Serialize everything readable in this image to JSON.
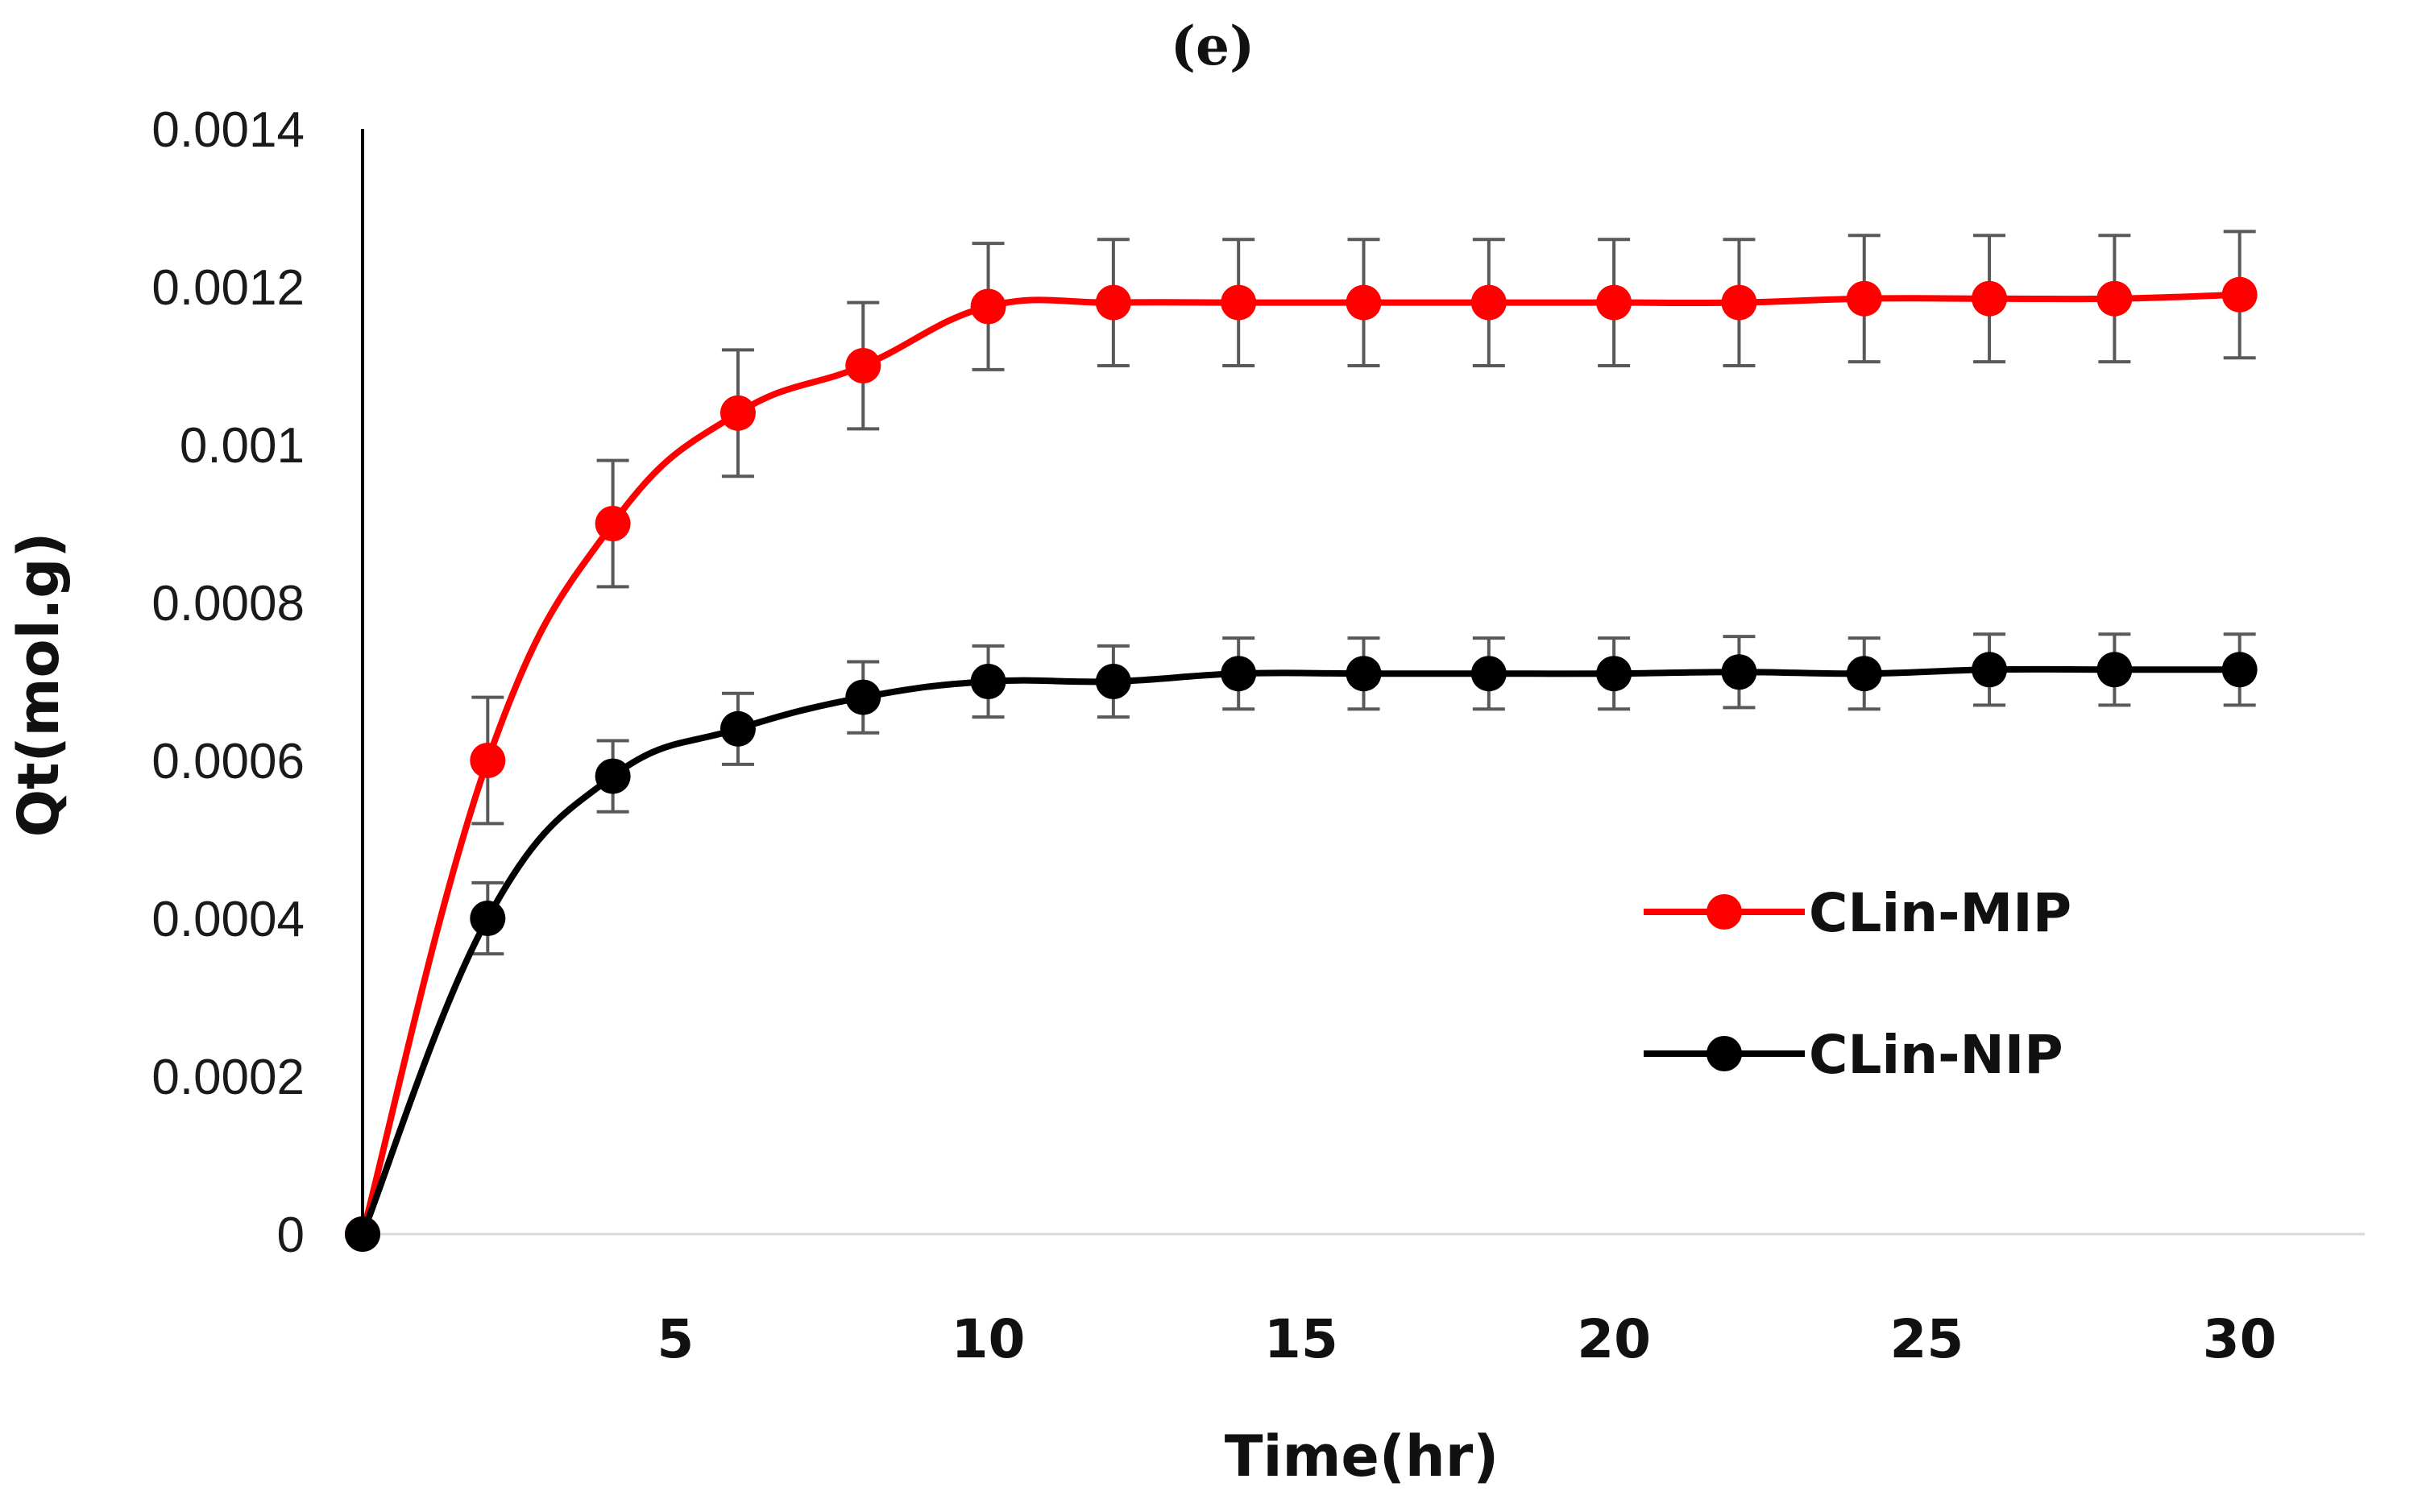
{
  "chart_data": {
    "type": "line",
    "panel_label": "(e)",
    "title": "",
    "xlabel": "Time(hr)",
    "ylabel": "Qt(mol.g)",
    "xlim": [
      0,
      32
    ],
    "ylim": [
      0,
      0.0014
    ],
    "x_ticks": [
      5,
      10,
      15,
      20,
      25,
      30
    ],
    "x_tick_labels": [
      "5",
      "10",
      "15",
      "20",
      "25",
      "30"
    ],
    "y_ticks": [
      0,
      0.0002,
      0.0004,
      0.0006,
      0.0008,
      0.001,
      0.0012,
      0.0014
    ],
    "y_tick_labels": [
      "0",
      "0.0002",
      "0.0004",
      "0.0006",
      "0.0008",
      "0.001",
      "0.0012",
      "0.0014"
    ],
    "grid": false,
    "legend_position": "right",
    "smooth": true,
    "x": [
      0,
      2,
      4,
      6,
      8,
      10,
      12,
      14,
      16,
      18,
      20,
      22,
      24,
      26,
      28,
      30
    ],
    "series": [
      {
        "name": "CLin-MIP",
        "color": "#ff0000",
        "values": [
          0,
          0.0006,
          0.0009,
          0.00104,
          0.0011,
          0.001175,
          0.00118,
          0.00118,
          0.00118,
          0.00118,
          0.00118,
          0.00118,
          0.001185,
          0.001185,
          0.001185,
          0.00119
        ],
        "errors": [
          0,
          8e-05,
          8e-05,
          8e-05,
          8e-05,
          8e-05,
          8e-05,
          8e-05,
          8e-05,
          8e-05,
          8e-05,
          8e-05,
          8e-05,
          8e-05,
          8e-05,
          8e-05
        ]
      },
      {
        "name": "CLin-NIP",
        "color": "#000000",
        "values": [
          0,
          0.0004,
          0.00058,
          0.00064,
          0.00068,
          0.0007,
          0.0007,
          0.00071,
          0.00071,
          0.00071,
          0.00071,
          0.000712,
          0.00071,
          0.000715,
          0.000715,
          0.000715
        ],
        "errors": [
          0,
          4.5e-05,
          4.5e-05,
          4.5e-05,
          4.5e-05,
          4.5e-05,
          4.5e-05,
          4.5e-05,
          4.5e-05,
          4.5e-05,
          4.5e-05,
          4.5e-05,
          4.5e-05,
          4.5e-05,
          4.5e-05,
          4.5e-05
        ]
      }
    ],
    "error_bar_color": "#595959"
  }
}
